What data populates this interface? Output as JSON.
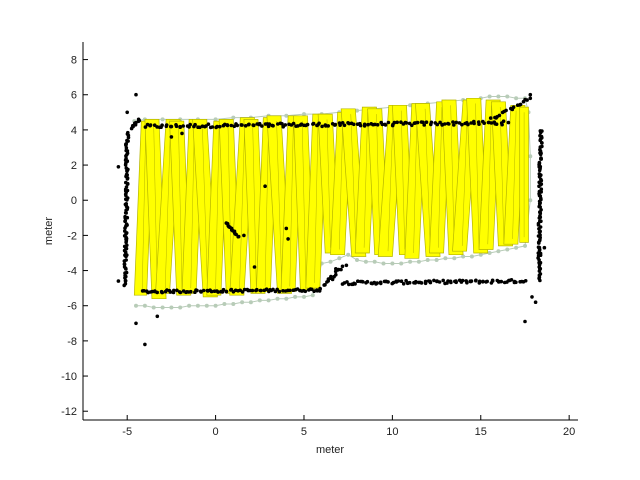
{
  "chart_data": {
    "type": "scatter",
    "title": "",
    "xlabel": "meter",
    "ylabel": "meter",
    "xlim": [
      -7.5,
      20.5
    ],
    "ylim": [
      -12.5,
      9
    ],
    "xticks": [
      -5,
      0,
      5,
      10,
      15,
      20
    ],
    "yticks": [
      -12,
      -10,
      -8,
      -6,
      -4,
      -2,
      0,
      2,
      4,
      6,
      8
    ],
    "xtick_labels": [
      "-5",
      "0",
      "5",
      "10",
      "15",
      "20"
    ],
    "ytick_labels": [
      "-12",
      "-10",
      "-8",
      "-6",
      "-4",
      "-2",
      "0",
      "2",
      "4",
      "6",
      "8"
    ],
    "grid": false,
    "colors": {
      "points": "#000000",
      "footprint_fill": "#ffff00",
      "footprint_edge": "#b5b500",
      "trajectory": "#b8ccb8",
      "axis": "#000000"
    },
    "footprints": [
      {
        "x": -4.4,
        "w": 0.7,
        "y0": -5.4,
        "y1": 4.5,
        "tilt": 0.2
      },
      {
        "x": -3.8,
        "w": 0.8,
        "y0": -5.6,
        "y1": 4.6,
        "tilt": -0.2
      },
      {
        "x": -3.1,
        "w": 0.8,
        "y0": -5.3,
        "y1": 4.6,
        "tilt": 0.3
      },
      {
        "x": -2.4,
        "w": 0.8,
        "y0": -5.4,
        "y1": 4.5,
        "tilt": -0.2
      },
      {
        "x": -1.7,
        "w": 0.8,
        "y0": -5.3,
        "y1": 4.6,
        "tilt": 0.2
      },
      {
        "x": -1.0,
        "w": 0.8,
        "y0": -5.5,
        "y1": 4.6,
        "tilt": -0.3
      },
      {
        "x": -0.3,
        "w": 0.8,
        "y0": -5.4,
        "y1": 4.5,
        "tilt": 0.2
      },
      {
        "x": 0.4,
        "w": 0.8,
        "y0": -5.3,
        "y1": 4.6,
        "tilt": -0.2
      },
      {
        "x": 1.1,
        "w": 0.8,
        "y0": -5.4,
        "y1": 4.7,
        "tilt": 0.3
      },
      {
        "x": 1.8,
        "w": 0.8,
        "y0": -5.3,
        "y1": 4.6,
        "tilt": -0.2
      },
      {
        "x": 2.5,
        "w": 0.8,
        "y0": -5.2,
        "y1": 4.7,
        "tilt": 0.2
      },
      {
        "x": 3.2,
        "w": 0.8,
        "y0": -5.3,
        "y1": 4.8,
        "tilt": -0.3
      },
      {
        "x": 3.9,
        "w": 0.8,
        "y0": -5.2,
        "y1": 4.8,
        "tilt": 0.2
      },
      {
        "x": 4.6,
        "w": 0.8,
        "y0": -5.1,
        "y1": 4.8,
        "tilt": -0.2
      },
      {
        "x": 5.3,
        "w": 0.8,
        "y0": -5.0,
        "y1": 4.9,
        "tilt": 0.2
      },
      {
        "x": 6.0,
        "w": 0.8,
        "y0": -3.0,
        "y1": 4.9,
        "tilt": -0.2
      },
      {
        "x": 6.7,
        "w": 0.8,
        "y0": -3.1,
        "y1": 5.0,
        "tilt": 0.2
      },
      {
        "x": 7.4,
        "w": 0.8,
        "y0": -3.2,
        "y1": 5.2,
        "tilt": -0.3
      },
      {
        "x": 8.1,
        "w": 0.8,
        "y0": -3.0,
        "y1": 5.3,
        "tilt": 0.2
      },
      {
        "x": 8.8,
        "w": 0.8,
        "y0": -3.1,
        "y1": 5.2,
        "tilt": -0.2
      },
      {
        "x": 9.5,
        "w": 0.8,
        "y0": -3.2,
        "y1": 5.4,
        "tilt": 0.3
      },
      {
        "x": 10.2,
        "w": 0.8,
        "y0": -3.1,
        "y1": 5.4,
        "tilt": -0.2
      },
      {
        "x": 10.9,
        "w": 0.8,
        "y0": -3.3,
        "y1": 5.5,
        "tilt": 0.2
      },
      {
        "x": 11.6,
        "w": 0.8,
        "y0": -3.2,
        "y1": 5.5,
        "tilt": -0.3
      },
      {
        "x": 12.3,
        "w": 0.8,
        "y0": -3.0,
        "y1": 5.6,
        "tilt": 0.2
      },
      {
        "x": 13.0,
        "w": 0.8,
        "y0": -3.1,
        "y1": 5.7,
        "tilt": -0.2
      },
      {
        "x": 13.7,
        "w": 0.8,
        "y0": -2.9,
        "y1": 5.7,
        "tilt": 0.3
      },
      {
        "x": 14.4,
        "w": 0.8,
        "y0": -3.0,
        "y1": 5.8,
        "tilt": -0.2
      },
      {
        "x": 15.1,
        "w": 0.8,
        "y0": -2.8,
        "y1": 5.7,
        "tilt": 0.2
      },
      {
        "x": 15.8,
        "w": 0.8,
        "y0": -2.6,
        "y1": 5.6,
        "tilt": -0.2
      },
      {
        "x": 16.5,
        "w": 0.8,
        "y0": -2.5,
        "y1": 5.4,
        "tilt": 0.2
      },
      {
        "x": 17.2,
        "w": 0.5,
        "y0": -2.4,
        "y1": 5.3,
        "tilt": 0.0
      }
    ],
    "trajectory": [
      [
        -4.5,
        -6.0
      ],
      [
        -4.0,
        -6.0
      ],
      [
        -3.5,
        -6.1
      ],
      [
        -3.0,
        -6.1
      ],
      [
        -2.5,
        -6.1
      ],
      [
        -2.0,
        -6.1
      ],
      [
        -1.5,
        -6.0
      ],
      [
        -1.0,
        -6.0
      ],
      [
        -0.5,
        -6.0
      ],
      [
        0.0,
        -6.0
      ],
      [
        0.5,
        -5.9
      ],
      [
        1.0,
        -5.9
      ],
      [
        1.5,
        -5.8
      ],
      [
        2.0,
        -5.8
      ],
      [
        2.5,
        -5.7
      ],
      [
        3.0,
        -5.7
      ],
      [
        3.5,
        -5.6
      ],
      [
        4.0,
        -5.6
      ],
      [
        4.5,
        -5.5
      ],
      [
        5.0,
        -5.5
      ],
      [
        5.5,
        -5.4
      ],
      [
        6.0,
        -3.6
      ],
      [
        6.5,
        -3.5
      ],
      [
        7.0,
        -3.3
      ],
      [
        7.5,
        -3.1
      ],
      [
        8.0,
        -3.4
      ],
      [
        8.5,
        -3.5
      ],
      [
        9.0,
        -3.5
      ],
      [
        9.5,
        -3.6
      ],
      [
        10.0,
        -3.6
      ],
      [
        10.5,
        -3.6
      ],
      [
        11.0,
        -3.5
      ],
      [
        11.5,
        -3.5
      ],
      [
        12.0,
        -3.4
      ],
      [
        12.5,
        -3.4
      ],
      [
        13.0,
        -3.3
      ],
      [
        13.5,
        -3.3
      ],
      [
        14.0,
        -3.2
      ],
      [
        14.5,
        -3.2
      ],
      [
        15.0,
        -3.1
      ],
      [
        15.5,
        -3.0
      ],
      [
        16.0,
        -2.9
      ],
      [
        16.5,
        -2.8
      ],
      [
        17.0,
        -2.7
      ],
      [
        17.5,
        -2.6
      ],
      [
        17.8,
        0.0
      ],
      [
        17.8,
        2.5
      ],
      [
        17.7,
        5.0
      ],
      [
        17.5,
        5.8
      ],
      [
        17.0,
        5.8
      ],
      [
        16.5,
        5.9
      ],
      [
        16.0,
        5.9
      ],
      [
        15.5,
        5.9
      ],
      [
        15.0,
        5.8
      ],
      [
        14.0,
        5.7
      ],
      [
        13.0,
        5.6
      ],
      [
        12.0,
        5.5
      ],
      [
        11.0,
        5.4
      ],
      [
        10.0,
        5.3
      ],
      [
        9.0,
        5.2
      ],
      [
        8.0,
        5.1
      ],
      [
        7.0,
        5.0
      ],
      [
        6.0,
        4.9
      ],
      [
        5.0,
        4.9
      ],
      [
        4.0,
        4.8
      ],
      [
        3.0,
        4.8
      ],
      [
        2.0,
        4.7
      ],
      [
        1.0,
        4.7
      ],
      [
        0.0,
        4.6
      ],
      [
        -1.0,
        4.6
      ],
      [
        -2.0,
        4.6
      ],
      [
        -3.0,
        4.6
      ],
      [
        -4.0,
        4.6
      ],
      [
        -4.6,
        4.5
      ]
    ],
    "point_groups": [
      {
        "name": "top_wall",
        "x_from": -4.0,
        "x_to": 16.5,
        "y_from": 4.2,
        "y_to": 4.4,
        "count": 160,
        "jitter": 0.2
      },
      {
        "name": "bottom_wall_left",
        "x_from": -4.2,
        "x_to": 5.8,
        "y_from": -5.2,
        "y_to": -5.1,
        "count": 85,
        "jitter": 0.15
      },
      {
        "name": "bottom_wall_right",
        "x_from": 7.2,
        "x_to": 17.5,
        "y_from": -4.7,
        "y_to": -4.6,
        "count": 95,
        "jitter": 0.18
      },
      {
        "name": "step_wall",
        "x_from": 5.8,
        "x_to": 7.2,
        "y_from": -5.1,
        "y_to": -3.8,
        "count": 18,
        "jitter": 0.2
      },
      {
        "name": "left_wall",
        "x_from": -5.1,
        "x_to": -5.0,
        "y_from": -4.8,
        "y_to": 3.8,
        "count": 95,
        "jitter": 0.15
      },
      {
        "name": "right_wall",
        "x_from": 18.3,
        "x_to": 18.4,
        "y_from": -4.5,
        "y_to": 4.0,
        "count": 95,
        "jitter": 0.15
      },
      {
        "name": "inner_obstacle",
        "x_from": 0.6,
        "x_to": 1.3,
        "y_from": -1.3,
        "y_to": -2.1,
        "count": 14,
        "jitter": 0.08
      },
      {
        "name": "upper_left_segment",
        "x_from": -4.8,
        "x_to": -4.3,
        "y_from": 4.1,
        "y_to": 4.6,
        "count": 10,
        "jitter": 0.12
      },
      {
        "name": "upper_right_segment",
        "x_from": 15.6,
        "x_to": 17.8,
        "y_from": 4.6,
        "y_to": 5.8,
        "count": 18,
        "jitter": 0.15
      }
    ],
    "outlier_points": [
      [
        -4.5,
        6.0
      ],
      [
        -5.0,
        5.0
      ],
      [
        -4.5,
        -7.0
      ],
      [
        -4.0,
        -8.2
      ],
      [
        -3.3,
        -6.6
      ],
      [
        2.8,
        0.8
      ],
      [
        2.2,
        -3.8
      ],
      [
        1.6,
        -2.0
      ],
      [
        4.1,
        -2.2
      ],
      [
        17.5,
        -6.9
      ],
      [
        17.9,
        -5.5
      ],
      [
        18.1,
        -5.8
      ],
      [
        17.8,
        6.0
      ],
      [
        -5.5,
        -4.6
      ],
      [
        -5.5,
        1.9
      ],
      [
        18.6,
        -2.7
      ],
      [
        0.3,
        -5.2
      ],
      [
        4.0,
        -1.6
      ],
      [
        6.8,
        -3.9
      ],
      [
        7.4,
        -3.7
      ],
      [
        -2.5,
        3.6
      ],
      [
        -1.9,
        3.8
      ],
      [
        3.0,
        4.2
      ]
    ]
  }
}
